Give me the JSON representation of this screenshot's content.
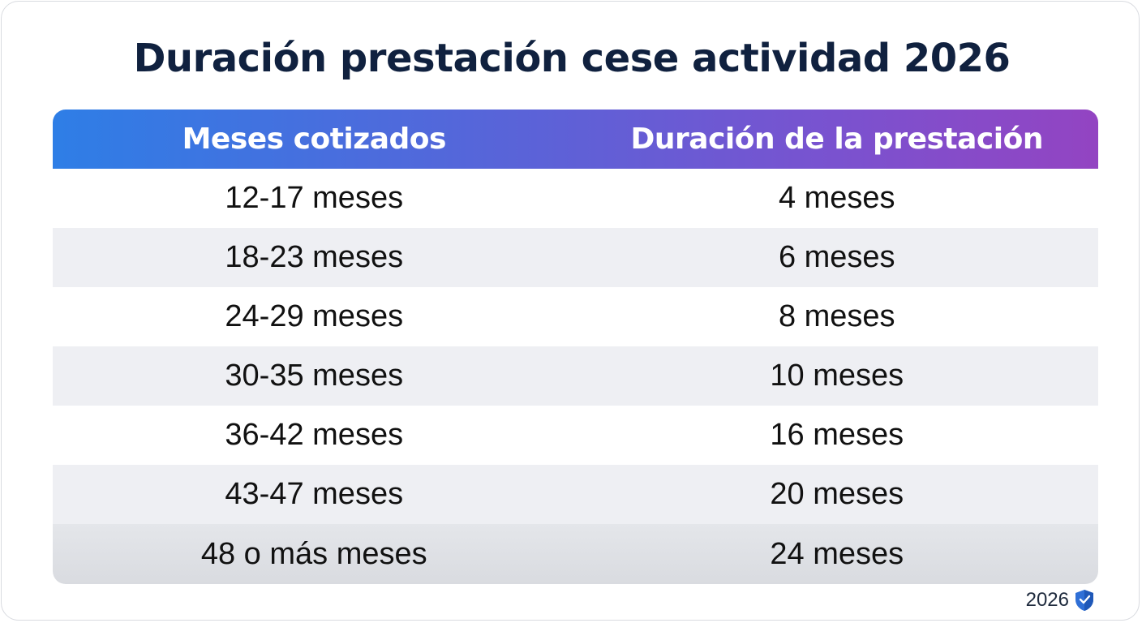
{
  "title": "Duración prestación cese actividad 2026",
  "table": {
    "headers": [
      "Meses cotizados",
      "Duración de la prestación"
    ],
    "rows": [
      [
        "12-17 meses",
        "4 meses"
      ],
      [
        "18-23 meses",
        "6 meses"
      ],
      [
        "24-29 meses",
        "8 meses"
      ],
      [
        "30-35 meses",
        "10 meses"
      ],
      [
        "36-42 meses",
        "16 meses"
      ],
      [
        "43-47 meses",
        "20 meses"
      ],
      [
        "48 o más meses",
        "24 meses"
      ]
    ]
  },
  "footer": {
    "year": "2026",
    "icon": "shield-icon"
  },
  "colors": {
    "title": "#10213f",
    "header_gradient_start": "#2e7ee6",
    "header_gradient_end": "#9344c2",
    "row_alt": "#eeeff3",
    "shield": "#2f6fd6"
  }
}
